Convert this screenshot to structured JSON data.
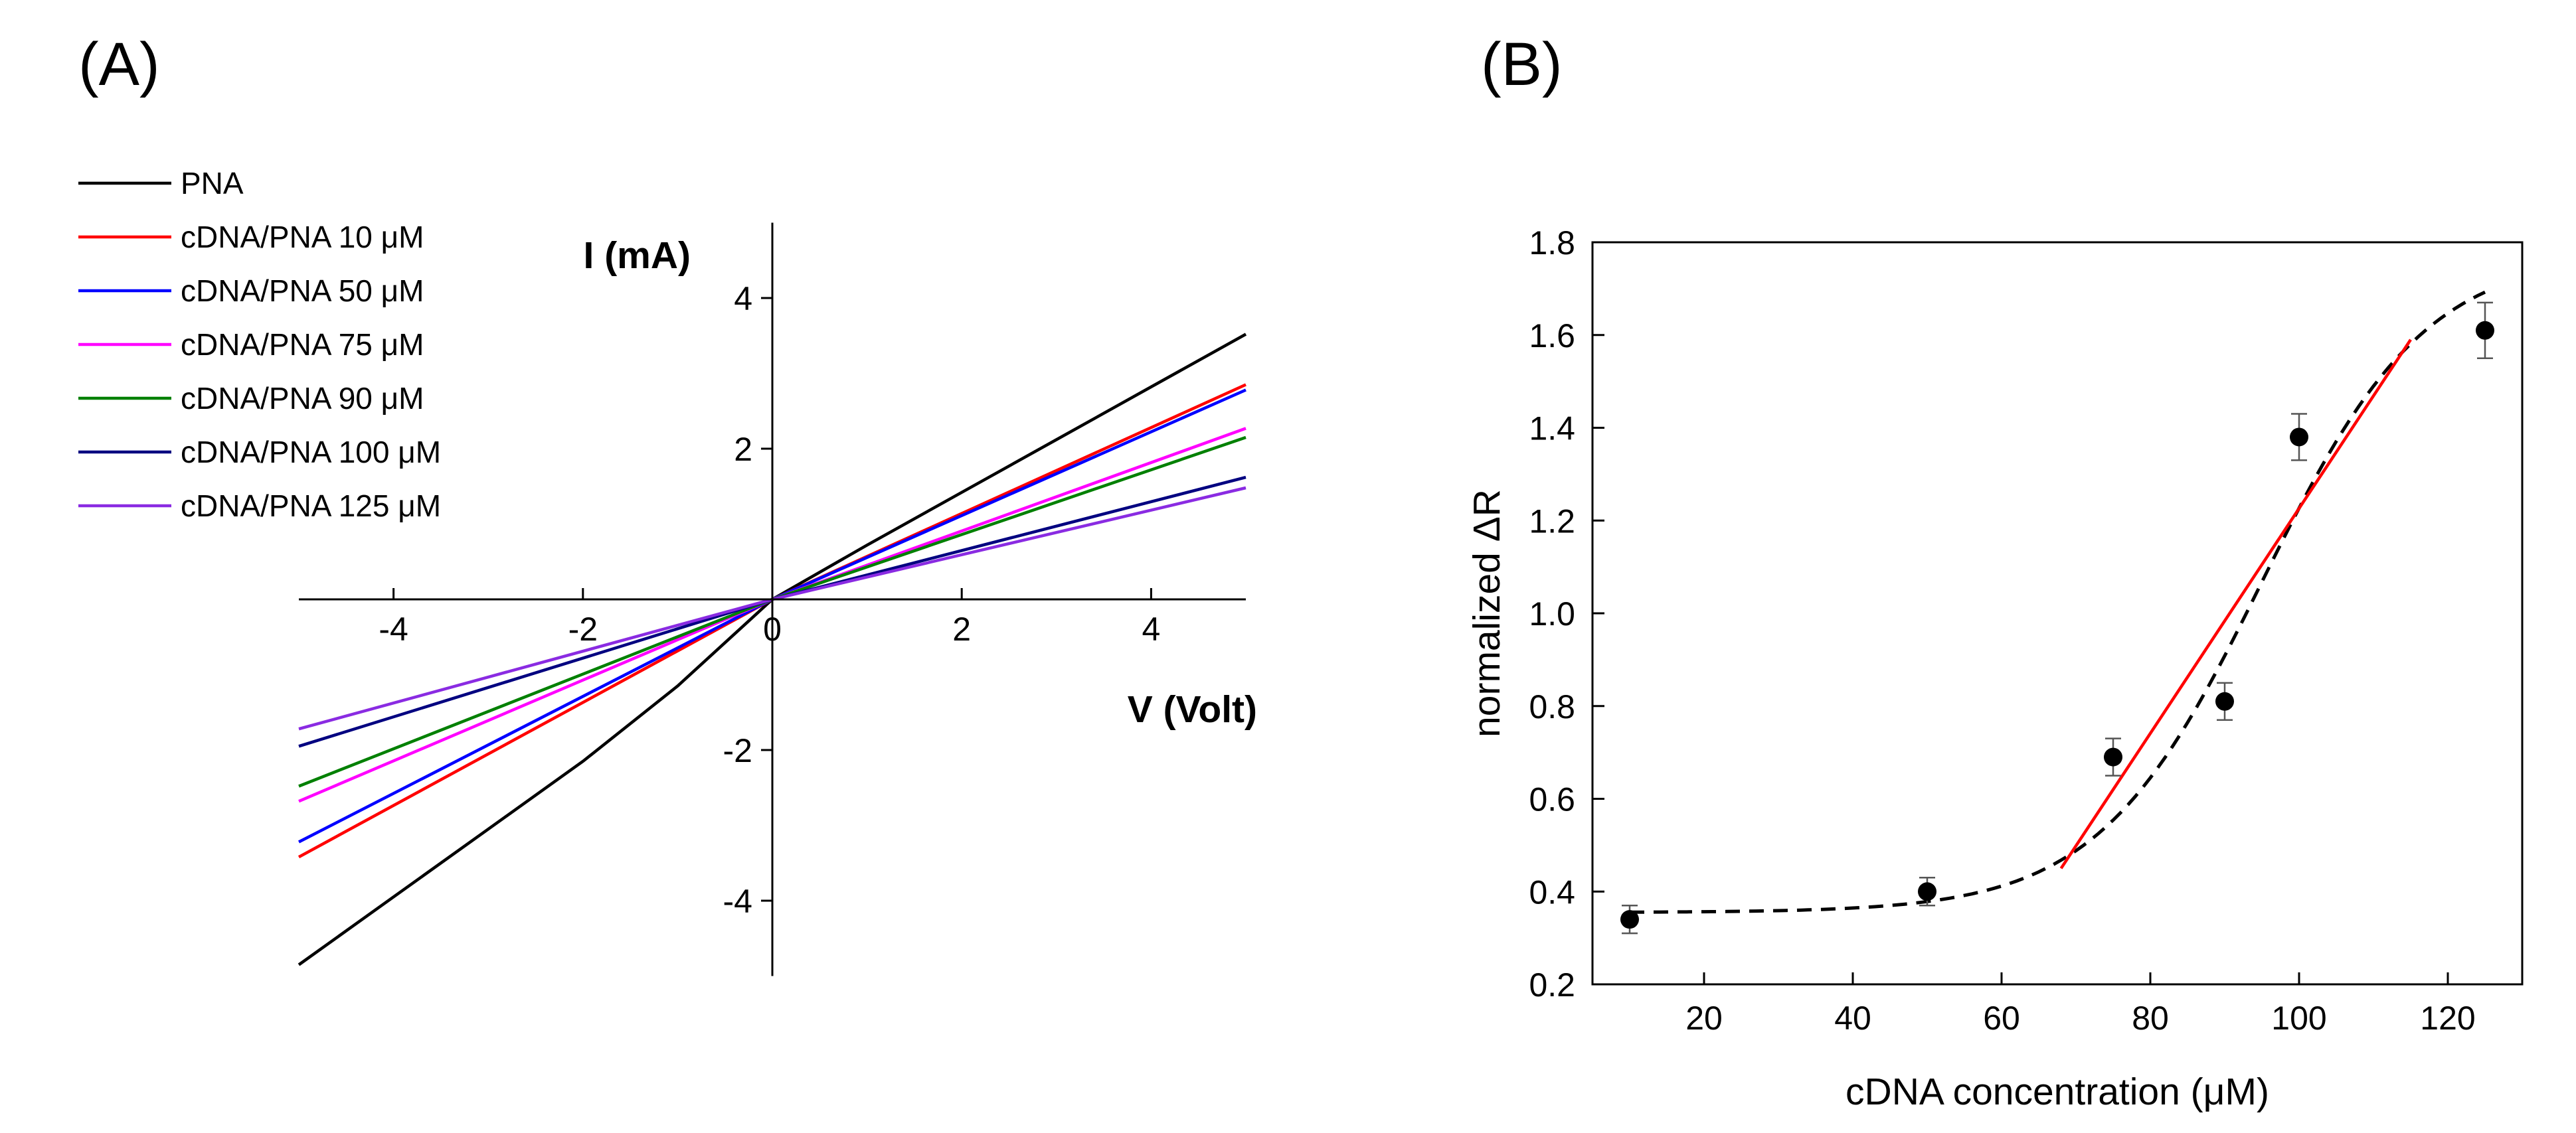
{
  "chart_data": [
    {
      "panel": "(A)",
      "type": "line",
      "xlabel": "V (Volt)",
      "ylabel": "I (mA)",
      "xlim": [
        -5,
        5
      ],
      "ylim": [
        -5,
        5
      ],
      "xticks": [
        -4,
        -2,
        0,
        2,
        4
      ],
      "yticks": [
        -4,
        -2,
        0,
        2,
        4
      ],
      "xtick_labels": [
        "-4",
        "-2",
        "0",
        "2",
        "4"
      ],
      "ytick_labels": [
        "-4",
        "-2",
        "0",
        "2",
        "4"
      ],
      "legend_position": "top-left",
      "series": [
        {
          "name": "PNA",
          "color": "#000000",
          "points": [
            [
              -5,
              -4.85
            ],
            [
              -4,
              -3.95
            ],
            [
              -3,
              -3.05
            ],
            [
              -2,
              -2.15
            ],
            [
              -1,
              -1.15
            ],
            [
              0,
              0
            ],
            [
              1,
              0.72
            ],
            [
              2,
              1.42
            ],
            [
              3,
              2.12
            ],
            [
              4,
              2.82
            ],
            [
              5,
              3.52
            ]
          ]
        },
        {
          "name": "cDNA/PNA 10 μM",
          "color": "#ff0000",
          "points": [
            [
              -5,
              -3.42
            ],
            [
              0,
              0
            ],
            [
              5,
              2.85
            ]
          ]
        },
        {
          "name": "cDNA/PNA 50 μM",
          "color": "#0000ff",
          "points": [
            [
              -5,
              -3.22
            ],
            [
              0,
              0
            ],
            [
              5,
              2.78
            ]
          ]
        },
        {
          "name": "cDNA/PNA 75 μM",
          "color": "#ff00ff",
          "points": [
            [
              -5,
              -2.68
            ],
            [
              0,
              0
            ],
            [
              5,
              2.27
            ]
          ]
        },
        {
          "name": "cDNA/PNA 90 μM",
          "color": "#008000",
          "points": [
            [
              -5,
              -2.48
            ],
            [
              0,
              0
            ],
            [
              5,
              2.15
            ]
          ]
        },
        {
          "name": "cDNA/PNA 100 μM",
          "color": "#000080",
          "points": [
            [
              -5,
              -1.95
            ],
            [
              0,
              0
            ],
            [
              5,
              1.62
            ]
          ]
        },
        {
          "name": "cDNA/PNA 125 μM",
          "color": "#8a2be2",
          "points": [
            [
              -5,
              -1.72
            ],
            [
              0,
              0
            ],
            [
              5,
              1.48
            ]
          ]
        }
      ]
    },
    {
      "panel": "(B)",
      "type": "scatter",
      "xlabel": "cDNA concentration (μM)",
      "ylabel": "normalized ΔR",
      "xlim": [
        5,
        130
      ],
      "ylim": [
        0.2,
        1.8
      ],
      "xticks": [
        20,
        40,
        60,
        80,
        100,
        120
      ],
      "yticks": [
        0.2,
        0.4,
        0.6,
        0.8,
        1.0,
        1.2,
        1.4,
        1.6,
        1.8
      ],
      "xtick_labels": [
        "20",
        "40",
        "60",
        "80",
        "100",
        "120"
      ],
      "ytick_labels": [
        "0.2",
        "0.4",
        "0.6",
        "0.8",
        "1.0",
        "1.2",
        "1.4",
        "1.6",
        "1.8"
      ],
      "points": [
        {
          "x": 10,
          "y": 0.34,
          "err": 0.03
        },
        {
          "x": 50,
          "y": 0.4,
          "err": 0.03
        },
        {
          "x": 75,
          "y": 0.69,
          "err": 0.04
        },
        {
          "x": 90,
          "y": 0.81,
          "err": 0.04
        },
        {
          "x": 100,
          "y": 1.38,
          "err": 0.05
        },
        {
          "x": 125,
          "y": 1.61,
          "err": 0.06
        }
      ],
      "sigmoid_fit": {
        "style": "dashed",
        "color": "#000000",
        "bottom": 0.355,
        "top": 1.78,
        "x0": 95,
        "dx": 11
      },
      "linear_fit": {
        "color": "#ff0000",
        "x_range": [
          68,
          115
        ],
        "y_range": [
          0.45,
          1.59
        ]
      }
    }
  ]
}
